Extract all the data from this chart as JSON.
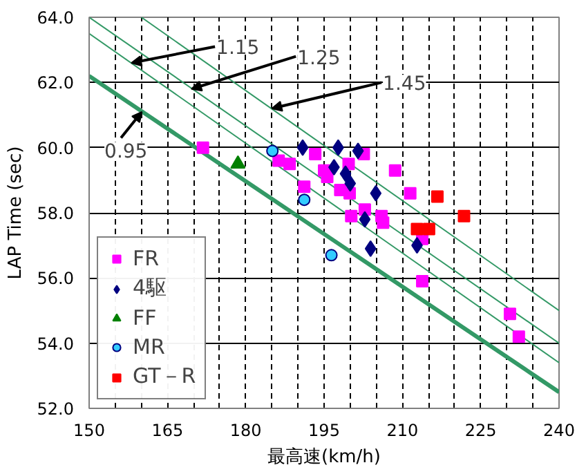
{
  "chart_data": {
    "type": "scatter",
    "xlabel": "最高速(km/h)",
    "ylabel": "LAP Time (sec)",
    "xlim": [
      150,
      240
    ],
    "ylim": [
      52,
      64
    ],
    "xticks": [
      150,
      {
        "value": 155,
        "label": null
      },
      {
        "value": 160,
        "label": null
      },
      165,
      {
        "value": 170,
        "label": null
      },
      {
        "value": 175,
        "label": null
      },
      180,
      {
        "value": 185,
        "label": null
      },
      {
        "value": 190,
        "label": null
      },
      195,
      {
        "value": 200,
        "label": null
      },
      {
        "value": 205,
        "label": null
      },
      210,
      {
        "value": 215,
        "label": null
      },
      {
        "value": 220,
        "label": null
      },
      225,
      {
        "value": 230,
        "label": null
      },
      {
        "value": 235,
        "label": null
      },
      240
    ],
    "yticks": [
      {
        "value": 52,
        "label": "52.0"
      },
      {
        "value": 54,
        "label": "54.0"
      },
      {
        "value": 56,
        "label": "56.0"
      },
      {
        "value": 58,
        "label": "58.0"
      },
      {
        "value": 60,
        "label": "60.0"
      },
      {
        "value": 62,
        "label": "62.0"
      },
      {
        "value": 64,
        "label": "64.0"
      }
    ],
    "grid": true,
    "legend": "bottom left",
    "series": [
      {
        "type": "line",
        "color": "#339966",
        "marker": "none",
        "x": [
          150,
          240
        ],
        "values": [
          62.2,
          52.5
        ]
      },
      {
        "type": "line",
        "color": "#339966",
        "marker": "none",
        "x": [
          150,
          240
        ],
        "values": [
          63.5,
          53.4
        ]
      },
      {
        "type": "line",
        "color": "#339966",
        "marker": "none",
        "x": [
          150,
          240
        ],
        "values": [
          64.0,
          54.0
        ]
      },
      {
        "type": "line",
        "color": "#339966",
        "marker": "none",
        "x": [
          160,
          240
        ],
        "values": [
          64.0,
          55.0
        ]
      },
      {
        "name": "FR",
        "color": "#ff00ff",
        "marker": "square",
        "x": [
          171.8,
          186.3,
          188.4,
          193.3,
          195.0,
          195.6,
          199.7,
          202.6,
          208.6,
          191.2,
          198.1,
          199.9,
          211.5,
          202.8,
          200.2,
          206.0,
          206.3,
          213.8,
          213.8,
          230.6,
          232.3
        ],
        "values": [
          60.0,
          59.6,
          59.5,
          59.8,
          59.3,
          59.1,
          59.5,
          59.8,
          59.3,
          58.8,
          58.7,
          58.6,
          58.6,
          58.1,
          57.9,
          57.9,
          57.7,
          57.2,
          55.9,
          54.9,
          54.2
        ]
      },
      {
        "name": "4駆",
        "color": "#000080",
        "marker": "diamond",
        "x": [
          190.9,
          197.7,
          201.5,
          196.9,
          199.1,
          200.0,
          204.9,
          202.8,
          203.9,
          212.8
        ],
        "values": [
          60.0,
          60.0,
          59.9,
          59.4,
          59.2,
          58.9,
          58.6,
          57.8,
          56.9,
          57.0
        ]
      },
      {
        "name": "FF",
        "color": "#008000",
        "marker": "triangle",
        "x": [
          178.5
        ],
        "values": [
          59.5
        ]
      },
      {
        "name": "MR",
        "color": "#33ccff",
        "marker": "circle",
        "x": [
          185.1,
          191.2,
          196.4
        ],
        "values": [
          59.9,
          58.4,
          56.7
        ]
      },
      {
        "name": "GT－R",
        "color": "#ff0000",
        "marker": "square",
        "x": [
          216.7,
          221.8,
          212.8,
          215.1
        ],
        "values": [
          58.5,
          57.9,
          57.5,
          57.5
        ]
      }
    ],
    "annotations": [
      {
        "text": "1.15",
        "x": 158.1,
        "y": 62.6
      },
      {
        "text": "1.25",
        "x": 169.6,
        "y": 61.8
      },
      {
        "text": "1.45",
        "x": 185.0,
        "y": 61.2
      },
      {
        "text": "0.95",
        "x": 160.1,
        "y": 61.1
      }
    ]
  }
}
